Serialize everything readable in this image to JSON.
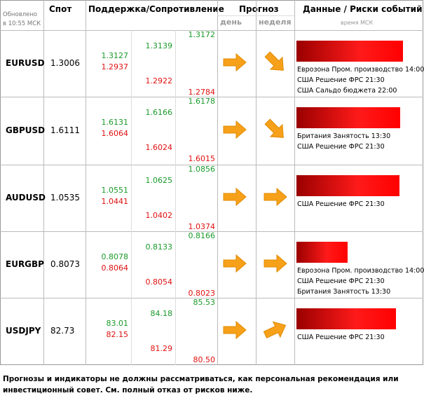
{
  "header": {
    "updated": [
      "Обновлено",
      "в 10:55 МСК"
    ],
    "spot": "Спот",
    "levels": "Поддержка/Сопротивление",
    "forecast": "Прогноз",
    "day": "день",
    "week": "неделя",
    "events": "Данные / Риски событий",
    "time_note": "время МСК"
  },
  "table": {
    "rows": [
      {
        "pair": "EURUSD",
        "spot": "1.3006",
        "levels": [
          [
            "1.3127",
            "1.2937"
          ],
          [
            "1.3139",
            "1.2922"
          ],
          [
            "1.3172",
            "1.2784"
          ]
        ],
        "events": [
          "Еврозона Пром. производство 14:00",
          "США Решение ФРС 21:30",
          "США Сальдо бюджета 22:00"
        ]
      },
      {
        "pair": "GBPUSD",
        "spot": "1.6111",
        "levels": [
          [
            "1.6131",
            "1.6064"
          ],
          [
            "1.6166",
            "1.6024"
          ],
          [
            "1.6178",
            "1.6015"
          ]
        ],
        "events": [
          "Британия Занятость 13:30",
          "США Решение ФРС 21:30"
        ]
      },
      {
        "pair": "AUDUSD",
        "spot": "1.0535",
        "levels": [
          [
            "1.0551",
            "1.0441"
          ],
          [
            "1.0625",
            "1.0402"
          ],
          [
            "1.0856",
            "1.0374"
          ]
        ],
        "events": [
          "США Решение ФРС 21:30"
        ]
      },
      {
        "pair": "EURGBP",
        "spot": "0.8073",
        "levels": [
          [
            "0.8078",
            "0.8064"
          ],
          [
            "0.8133",
            "0.8054"
          ],
          [
            "0.8166",
            "0.8023"
          ]
        ],
        "events": [
          "Еврозона Пром. производство 14:00",
          "США Решение ФРС 21:30",
          "Британия Занятость 13:30"
        ]
      },
      {
        "pair": "USDJPY",
        "spot": "82.73",
        "levels": [
          [
            "83.01",
            "82.15"
          ],
          [
            "84.18",
            "81.29"
          ],
          [
            "85.53",
            "80.50"
          ]
        ],
        "events": [
          "США Решение ФРС 21:30"
        ]
      }
    ]
  },
  "footer": "Прогнозы и индикаторы не должны рассматриваться, как персональная рекомендация или инвестиционный совет. См. полный отказ от рисков ниже."
}
